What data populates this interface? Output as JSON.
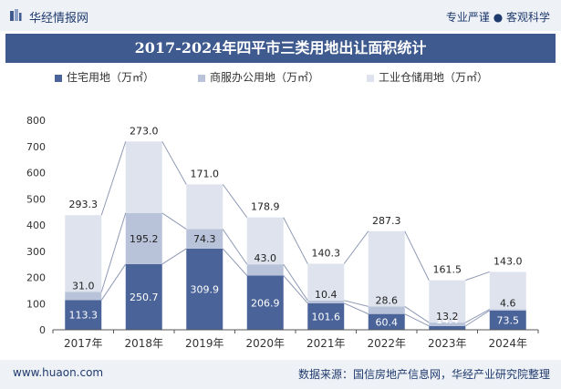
{
  "header": {
    "brand": "华经情报网",
    "tagline": "专业严谨 ● 客观科学"
  },
  "footer": {
    "url": "www.huaon.com",
    "source": "数据来源：国信房地产信息网，华经产业研究院整理"
  },
  "colors": {
    "residential": "#4a6399",
    "commercial": "#b8c2d9",
    "industrial": "#dfe3ee",
    "title_bg": "#3e5a8f"
  },
  "chart_data": {
    "type": "bar",
    "stacked": true,
    "title": "2017-2024年四平市三类用地出让面积统计",
    "categories": [
      "2017年",
      "2018年",
      "2019年",
      "2020年",
      "2021年",
      "2022年",
      "2023年",
      "2024年"
    ],
    "series": [
      {
        "name": "住宅用地（万㎡）",
        "values": [
          113.3,
          250.7,
          309.9,
          206.9,
          101.6,
          60.4,
          14.4,
          73.5
        ]
      },
      {
        "name": "商服办公用地（万㎡）",
        "values": [
          31.0,
          195.2,
          74.3,
          43.0,
          10.4,
          28.6,
          13.2,
          4.6
        ]
      },
      {
        "name": "工业仓储用地（万㎡）",
        "values": [
          293.3,
          273.0,
          171.0,
          178.9,
          140.3,
          287.3,
          161.5,
          143.0
        ]
      }
    ],
    "ylim": [
      0,
      800
    ],
    "yticks": [
      0,
      100,
      200,
      300,
      400,
      500,
      600,
      700,
      800
    ],
    "grid": false,
    "legend": "top"
  }
}
